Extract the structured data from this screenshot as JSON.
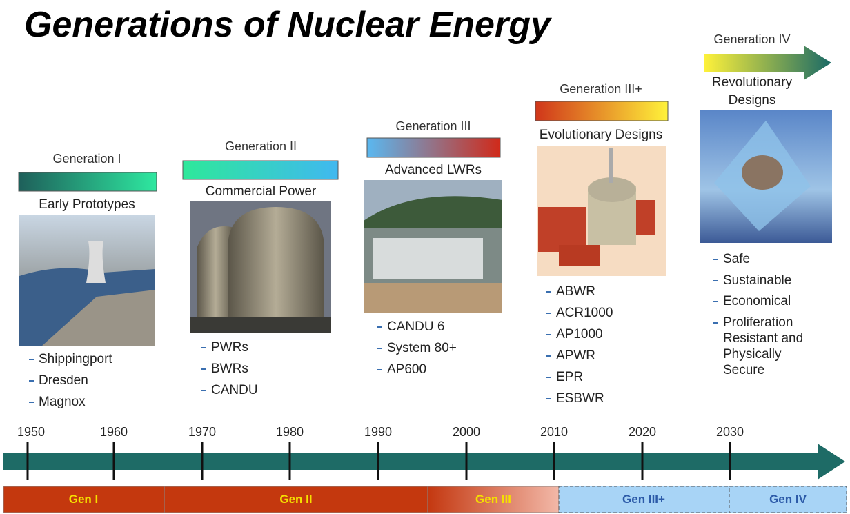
{
  "title": "Generations of Nuclear Energy",
  "generations": [
    {
      "label": "Generation I",
      "subtitle": "Early Prototypes",
      "items": [
        "Shippingport",
        "Dresden",
        "Magnox"
      ]
    },
    {
      "label": "Generation II",
      "subtitle": "Commercial Power",
      "items": [
        "PWRs",
        "BWRs",
        "CANDU"
      ]
    },
    {
      "label": "Generation III",
      "subtitle": "Advanced LWRs",
      "items": [
        "CANDU 6",
        "System 80+",
        "AP600"
      ]
    },
    {
      "label": "Generation III+",
      "subtitle": "Evolutionary Designs",
      "items": [
        "ABWR",
        "ACR1000",
        "AP1000",
        "APWR",
        "EPR",
        "ESBWR"
      ]
    },
    {
      "label": "Generation IV",
      "subtitle": "Revolutionary Designs",
      "items": [
        "Safe",
        "Sustainable",
        "Economical",
        "Proliferation Resistant and Physically Secure"
      ]
    }
  ],
  "timeline": {
    "years": [
      1950,
      1960,
      1970,
      1980,
      1990,
      2000,
      2010,
      2020,
      2030
    ]
  },
  "bands": [
    "Gen I",
    "Gen II",
    "Gen III",
    "Gen III+",
    "Gen IV"
  ]
}
